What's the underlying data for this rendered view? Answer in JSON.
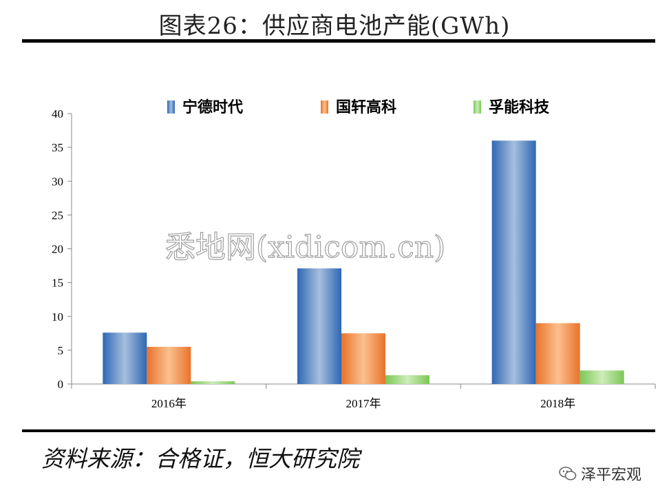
{
  "page": {
    "title": "图表26：供应商电池产能(GWh)",
    "source": "资料来源：合格证，恒大研究院",
    "brand": "泽平宏观",
    "watermark": "悉地网(xidicom.cn)"
  },
  "chart_data": {
    "type": "bar",
    "title": "",
    "xlabel": "",
    "ylabel": "",
    "ylim": [
      0,
      40
    ],
    "yticks": [
      0,
      5,
      10,
      15,
      20,
      25,
      30,
      35,
      40
    ],
    "categories": [
      "2016年",
      "2017年",
      "2018年"
    ],
    "legend_position": "top",
    "grid": false,
    "series": [
      {
        "name": "宁德时代",
        "values": [
          7.6,
          17.1,
          36.0
        ],
        "color": "#4a7fc1"
      },
      {
        "name": "国轩高科",
        "values": [
          5.5,
          7.5,
          9.0
        ],
        "color": "#f08a3c"
      },
      {
        "name": "孚能科技",
        "values": [
          0.4,
          1.3,
          2.0
        ],
        "color": "#8fd16a"
      }
    ]
  }
}
